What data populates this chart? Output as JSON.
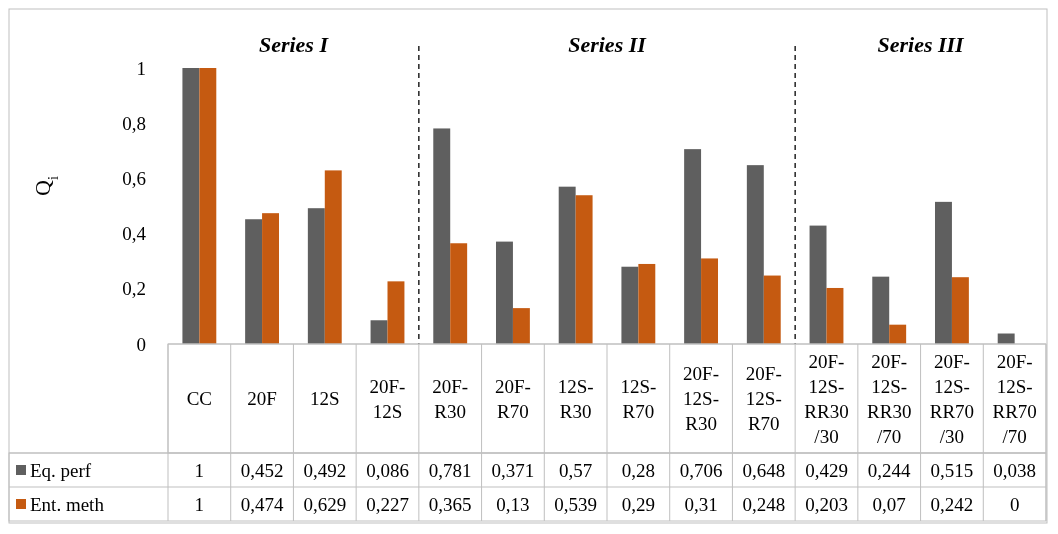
{
  "chart_data": {
    "type": "bar",
    "ylabel": "Q$_{i}$",
    "categories": [
      "CC",
      "20F",
      "12S",
      "20F-12S",
      "20F-R30",
      "20F-R70",
      "12S-R30",
      "12S-R70",
      "20F-12S-R30",
      "20F-12S-R70",
      "20F-12S-RR30/30",
      "20F-12S-RR30/70",
      "20F-12S-RR70/30",
      "20F-12S-RR70/70"
    ],
    "series": [
      {
        "name": "Eq. perf",
        "color": "#5f5f5f",
        "values": [
          1,
          0.452,
          0.492,
          0.086,
          0.781,
          0.371,
          0.57,
          0.28,
          0.706,
          0.648,
          0.429,
          0.244,
          0.515,
          0.038
        ],
        "value_labels": [
          "1",
          "0,452",
          "0,492",
          "0,086",
          "0,781",
          "0,371",
          "0,57",
          "0,28",
          "0,706",
          "0,648",
          "0,429",
          "0,244",
          "0,515",
          "0,038"
        ]
      },
      {
        "name": "Ent. meth",
        "color": "#c55a11",
        "values": [
          1,
          0.474,
          0.629,
          0.227,
          0.365,
          0.13,
          0.539,
          0.29,
          0.31,
          0.248,
          0.203,
          0.07,
          0.242,
          0
        ],
        "value_labels": [
          "1",
          "0,474",
          "0,629",
          "0,227",
          "0,365",
          "0,13",
          "0,539",
          "0,29",
          "0,31",
          "0,248",
          "0,203",
          "0,07",
          "0,242",
          "0"
        ]
      }
    ],
    "ylim": [
      0,
      1
    ],
    "yticks": [
      {
        "value": 0,
        "label": "0"
      },
      {
        "value": 0.2,
        "label": "0,2"
      },
      {
        "value": 0.4,
        "label": "0,4"
      },
      {
        "value": 0.6,
        "label": "0,6"
      },
      {
        "value": 0.8,
        "label": "0,8"
      },
      {
        "value": 1,
        "label": "1"
      }
    ],
    "annotations": [
      "Series I",
      "Series II",
      "Series III"
    ],
    "legend": "bottom",
    "grid": false
  }
}
